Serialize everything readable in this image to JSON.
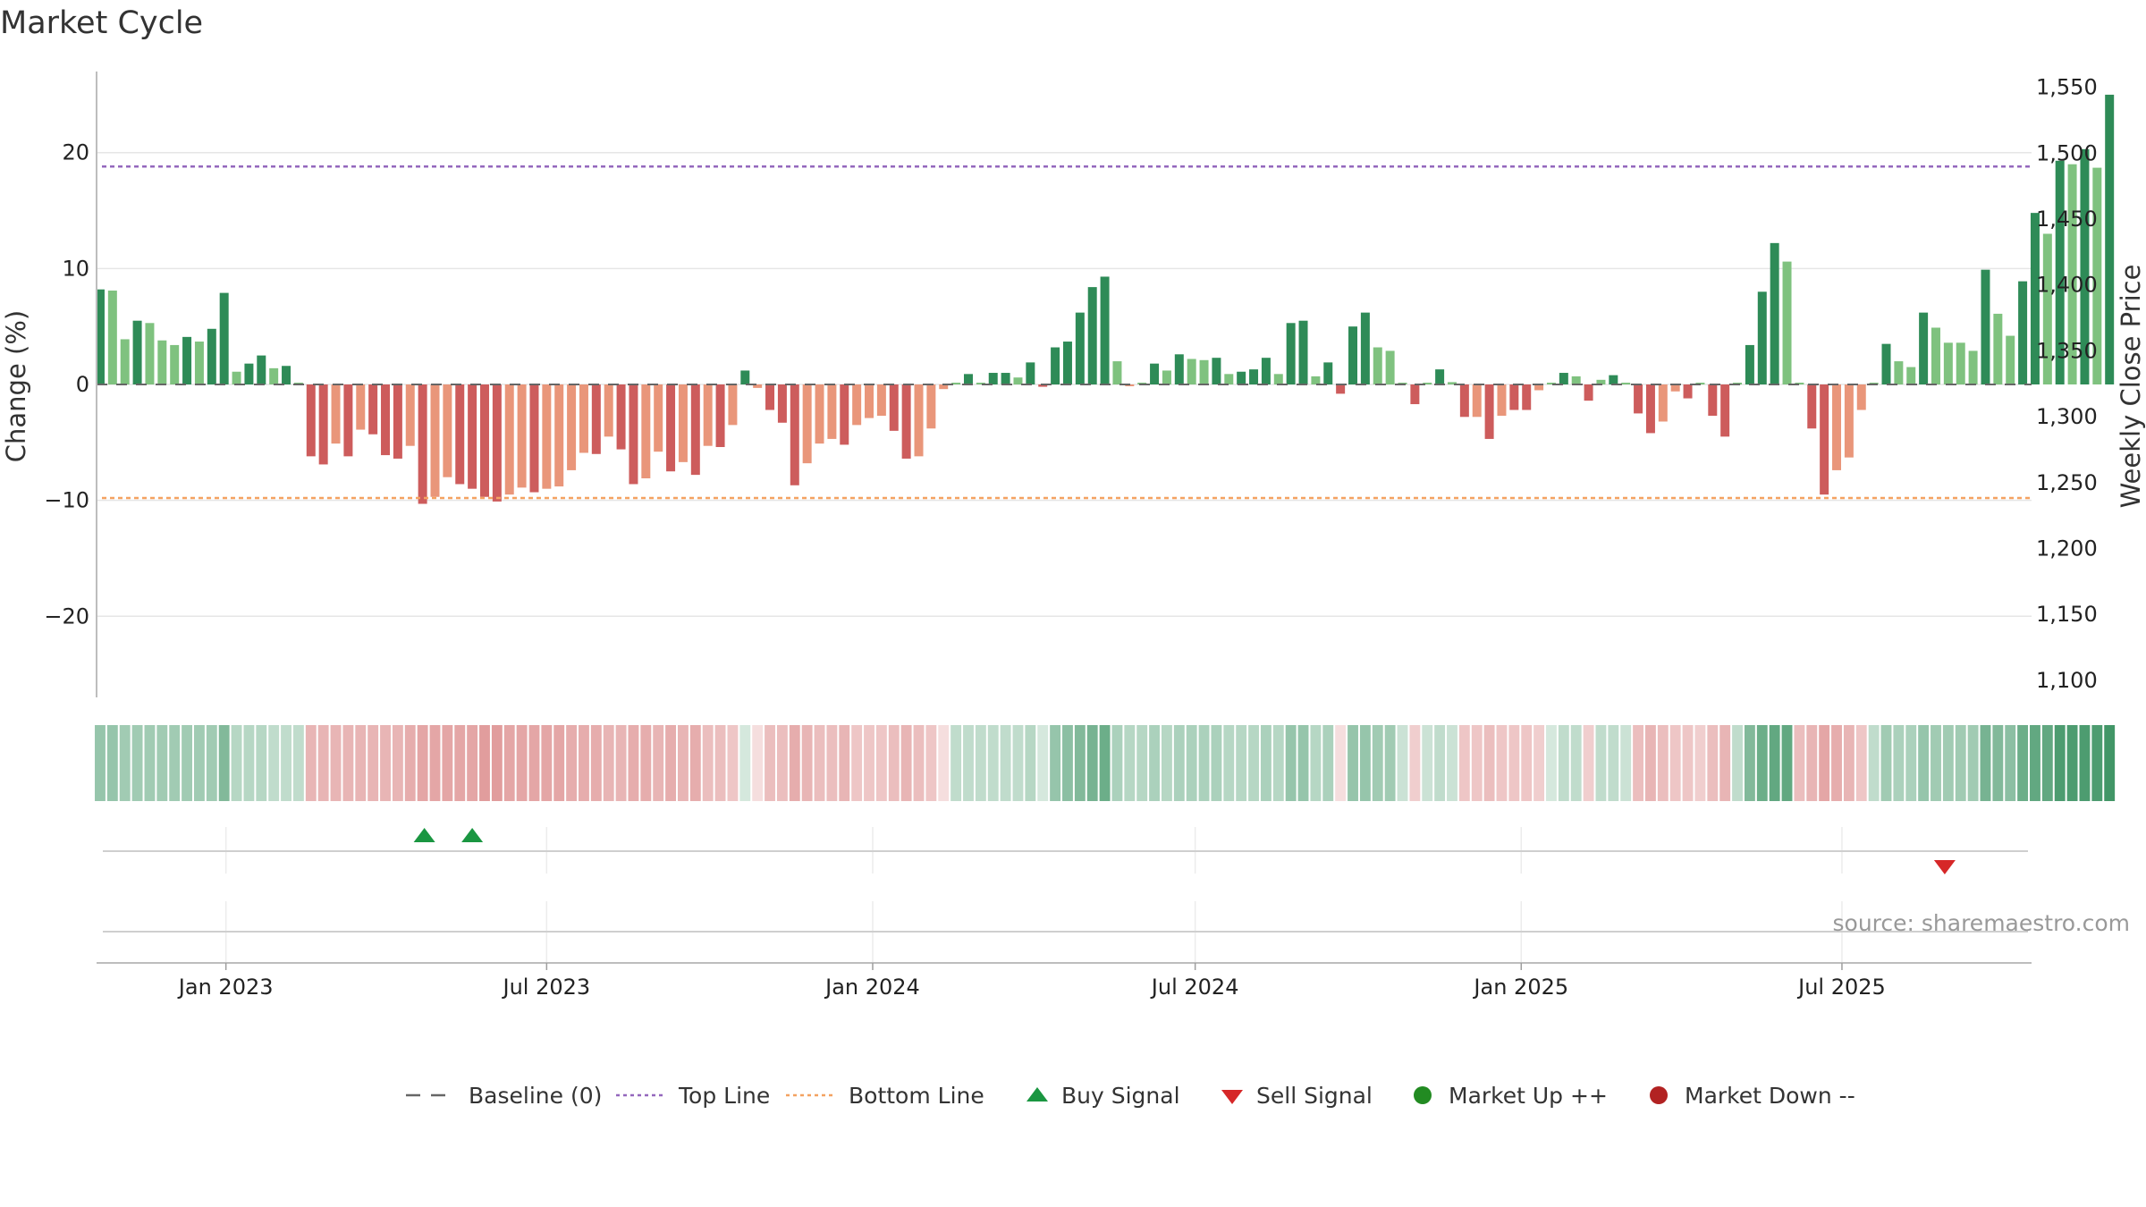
{
  "chart_data": {
    "type": "bar",
    "title": "Market Cycle",
    "ylabel_left": "Change (%)",
    "ylabel_right": "Weekly Close Price",
    "ylim": [
      -27,
      27
    ],
    "price_ylim": [
      1087,
      1562
    ],
    "yticks_left": [
      {
        "v": 20,
        "label": "20"
      },
      {
        "v": 10,
        "label": "10"
      },
      {
        "v": 0,
        "label": "0"
      },
      {
        "v": -10,
        "label": "−10"
      },
      {
        "v": -20,
        "label": "−20"
      }
    ],
    "yticks_right": [
      {
        "v": 1550,
        "label": "1,550"
      },
      {
        "v": 1500,
        "label": "1,500"
      },
      {
        "v": 1450,
        "label": "1,450"
      },
      {
        "v": 1400,
        "label": "1,400"
      },
      {
        "v": 1350,
        "label": "1,350"
      },
      {
        "v": 1300,
        "label": "1,300"
      },
      {
        "v": 1250,
        "label": "1,250"
      },
      {
        "v": 1200,
        "label": "1,200"
      },
      {
        "v": 1150,
        "label": "1,150"
      },
      {
        "v": 1100,
        "label": "1,100"
      }
    ],
    "x_range": [
      "2022-10-20",
      "2025-10-16"
    ],
    "xticks": [
      {
        "date": "2023-01-01",
        "label": "Jan 2023"
      },
      {
        "date": "2023-07-01",
        "label": "Jul 2023"
      },
      {
        "date": "2024-01-01",
        "label": "Jan 2024"
      },
      {
        "date": "2024-07-01",
        "label": "Jul 2024"
      },
      {
        "date": "2025-01-01",
        "label": "Jan 2025"
      },
      {
        "date": "2025-07-01",
        "label": "Jul 2025"
      }
    ],
    "first_week": "2022-10-22",
    "week_days": 7,
    "top_line": 18.8,
    "bottom_line": -9.8,
    "change_values": [
      8.2,
      8.1,
      3.9,
      5.5,
      5.3,
      3.8,
      3.4,
      4.1,
      3.7,
      4.8,
      7.9,
      1.1,
      1.8,
      2.5,
      1.4,
      1.6,
      0.1,
      -6.2,
      -6.9,
      -5.1,
      -6.2,
      -3.9,
      -4.3,
      -6.1,
      -6.4,
      -5.3,
      -10.3,
      -9.7,
      -8.0,
      -8.6,
      -9.0,
      -9.7,
      -10.1,
      -9.5,
      -8.9,
      -9.3,
      -9.0,
      -8.8,
      -7.4,
      -5.9,
      -6.0,
      -4.5,
      -5.6,
      -8.6,
      -8.1,
      -5.8,
      -7.5,
      -6.7,
      -7.8,
      -5.3,
      -5.4,
      -3.5,
      1.2,
      -0.3,
      -2.2,
      -3.3,
      -8.7,
      -6.8,
      -5.1,
      -4.7,
      -5.2,
      -3.5,
      -2.9,
      -2.7,
      -4.0,
      -6.4,
      -6.2,
      -3.8,
      -0.4,
      0.1,
      0.9,
      0.1,
      1.0,
      1.0,
      0.6,
      1.9,
      -0.2,
      3.2,
      3.7,
      6.2,
      8.4,
      9.3,
      2.0,
      -0.1,
      0.1,
      1.8,
      1.2,
      2.6,
      2.2,
      2.1,
      2.3,
      0.9,
      1.1,
      1.3,
      2.3,
      0.9,
      5.3,
      5.5,
      0.7,
      1.9,
      -0.8,
      5.0,
      6.2,
      3.2,
      2.9,
      0.1,
      -1.7,
      0.1,
      1.3,
      0.2,
      -2.8,
      -2.8,
      -4.7,
      -2.7,
      -2.2,
      -2.2,
      -0.5,
      0.1,
      1.0,
      0.7,
      -1.4,
      0.4,
      0.8,
      0.1,
      -2.5,
      -4.2,
      -3.2,
      -0.6,
      -1.2,
      0.1,
      -2.7,
      -4.5,
      0.1,
      3.4,
      8.0,
      12.2,
      10.6,
      0.1,
      -3.8,
      -9.5,
      -7.4,
      -6.3,
      -2.2,
      0.1,
      3.5,
      2.0,
      1.5,
      6.2,
      4.9,
      3.6,
      3.6,
      2.9,
      9.9,
      6.1,
      4.2,
      8.9,
      14.8,
      13.0,
      19.3,
      19.0,
      20.3,
      18.7,
      25.0
    ],
    "bar_shade": [
      1,
      0,
      0,
      1,
      0,
      0,
      0,
      1,
      0,
      1,
      1,
      0,
      1,
      1,
      0,
      1,
      0,
      1,
      1,
      0,
      1,
      0,
      1,
      1,
      1,
      0,
      1,
      0,
      0,
      1,
      1,
      1,
      1,
      0,
      0,
      1,
      0,
      0,
      0,
      0,
      1,
      0,
      1,
      1,
      0,
      0,
      1,
      0,
      1,
      0,
      1,
      0,
      1,
      0,
      1,
      1,
      1,
      0,
      0,
      0,
      1,
      0,
      0,
      0,
      1,
      1,
      0,
      0,
      0,
      0,
      1,
      0,
      1,
      1,
      0,
      1,
      1,
      1,
      1,
      1,
      1,
      1,
      0,
      0,
      0,
      1,
      0,
      1,
      0,
      0,
      1,
      0,
      1,
      1,
      1,
      0,
      1,
      1,
      0,
      1,
      1,
      1,
      1,
      0,
      0,
      0,
      1,
      0,
      1,
      0,
      1,
      0,
      1,
      0,
      1,
      1,
      0,
      0,
      1,
      0,
      1,
      0,
      1,
      0,
      1,
      1,
      0,
      0,
      1,
      0,
      1,
      1,
      0,
      1,
      1,
      1,
      0,
      0,
      1,
      1,
      0,
      0,
      0,
      0,
      1,
      0,
      0,
      1,
      0,
      0,
      0,
      0,
      1,
      0,
      0,
      1,
      1,
      0,
      1,
      0,
      1,
      0,
      1
    ],
    "heat_strip": [
      0.5,
      0.5,
      0.45,
      0.45,
      0.45,
      0.45,
      0.45,
      0.45,
      0.45,
      0.45,
      0.6,
      0.35,
      0.35,
      0.35,
      0.3,
      0.3,
      0.3,
      -0.45,
      -0.45,
      -0.45,
      -0.45,
      -0.45,
      -0.45,
      -0.45,
      -0.45,
      -0.5,
      -0.55,
      -0.55,
      -0.55,
      -0.55,
      -0.55,
      -0.6,
      -0.6,
      -0.55,
      -0.55,
      -0.55,
      -0.55,
      -0.55,
      -0.5,
      -0.5,
      -0.5,
      -0.45,
      -0.45,
      -0.5,
      -0.5,
      -0.45,
      -0.5,
      -0.45,
      -0.5,
      -0.4,
      -0.4,
      -0.35,
      0.2,
      -0.2,
      -0.4,
      -0.4,
      -0.5,
      -0.45,
      -0.4,
      -0.4,
      -0.45,
      -0.35,
      -0.35,
      -0.35,
      -0.4,
      -0.45,
      -0.4,
      -0.35,
      -0.2,
      0.3,
      0.3,
      0.3,
      0.3,
      0.3,
      0.3,
      0.35,
      0.2,
      0.5,
      0.55,
      0.6,
      0.65,
      0.7,
      0.4,
      0.35,
      0.35,
      0.4,
      0.35,
      0.4,
      0.4,
      0.4,
      0.4,
      0.35,
      0.35,
      0.35,
      0.4,
      0.35,
      0.5,
      0.5,
      0.35,
      0.4,
      -0.2,
      0.5,
      0.5,
      0.45,
      0.45,
      0.25,
      -0.3,
      0.25,
      0.3,
      0.25,
      -0.35,
      -0.35,
      -0.4,
      -0.35,
      -0.35,
      -0.35,
      -0.3,
      0.2,
      0.3,
      0.3,
      -0.3,
      0.3,
      0.3,
      0.25,
      -0.4,
      -0.45,
      -0.4,
      -0.35,
      -0.35,
      -0.3,
      -0.4,
      -0.45,
      0.3,
      0.6,
      0.7,
      0.75,
      0.75,
      -0.4,
      -0.45,
      -0.55,
      -0.5,
      -0.45,
      -0.35,
      0.3,
      0.45,
      0.4,
      0.4,
      0.5,
      0.45,
      0.45,
      0.45,
      0.45,
      0.65,
      0.6,
      0.55,
      0.7,
      0.75,
      0.75,
      0.85,
      0.85,
      0.85,
      0.85,
      0.9
    ],
    "buy_signals": [
      "2023-04-23",
      "2023-05-20"
    ],
    "sell_signals": [
      "2025-08-28"
    ],
    "colors": {
      "up_dark": "#2e8b57",
      "up_light": "#7fc27f",
      "down_dark": "#cd5c5c",
      "down_light": "#e9967a",
      "top_line": "#9467bd",
      "bottom_line": "#f4a261",
      "buy": "#1a9641",
      "sell": "#d62728",
      "market_up": "#228b22",
      "market_down": "#b22222",
      "baseline": "#666666"
    },
    "legend": [
      "Baseline (0)",
      "Top Line",
      "Bottom Line",
      "Buy Signal",
      "Sell Signal",
      "Market Up ++",
      "Market Down --"
    ],
    "source": "source: sharemaestro.com"
  }
}
